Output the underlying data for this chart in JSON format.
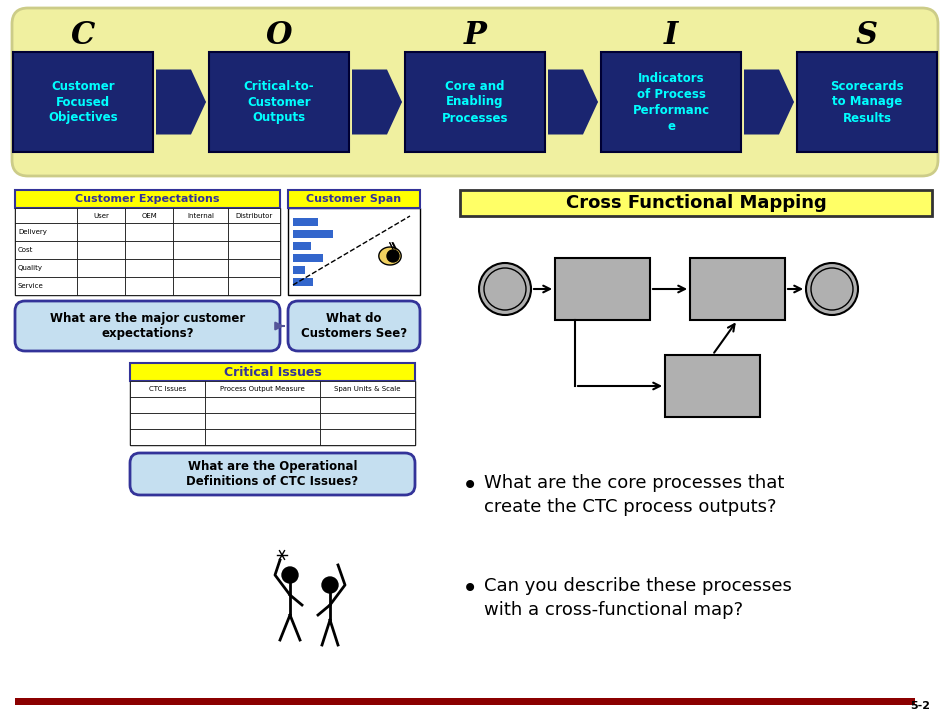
{
  "bg_color": "#ffffff",
  "copis_bg": "#f0f0a0",
  "copis_letters": [
    "C",
    "O",
    "P",
    "I",
    "S"
  ],
  "copis_labels": [
    "Customer\nFocused\nObjectives",
    "Critical-to-\nCustomer\nOutputs",
    "Core and\nEnabling\nProcesses",
    "Indicators\nof Process\nPerformanc\ne",
    "Scorecards\nto Manage\nResults"
  ],
  "box_color": "#1a2570",
  "box_text_color": "#00ffff",
  "arrow_color": "#1a2570",
  "cfm_title": "Cross Functional Mapping",
  "cfm_box_color": "#ffff66",
  "bullet1_line1": "What are the core processes that",
  "bullet1_line2": "create the CTC process outputs?",
  "bullet2_line1": "Can you describe these processes",
  "bullet2_line2": "with a cross-functional map?",
  "cust_exp_title": "Customer Expectations",
  "cust_span_title": "Customer Span",
  "critical_issues_title": "Critical Issues",
  "table1_cols": [
    "",
    "User",
    "OEM",
    "Internal",
    "Distributor"
  ],
  "table1_rows": [
    "Delivery",
    "Cost",
    "Quality",
    "Service"
  ],
  "table2_cols": [
    "CTC Issues",
    "Process Output Measure",
    "Span Units & Scale"
  ],
  "q1_text": "What are the major customer\nexpectations?",
  "q2_text": "What do\nCustomers See?",
  "q3_text": "What are the Operational\nDefinitions of CTC Issues?",
  "page_num": "5-2",
  "bottom_bar_color": "#8b0000",
  "title_yellow": "#ffff00",
  "title_border": "#333399",
  "table_border": "#333399",
  "q_box_fill": "#c5dff0",
  "q_box_border": "#333399",
  "circ_fill": "#b0b0b0",
  "box_fill": "#b0b0b0",
  "flow_ec": "#555555"
}
